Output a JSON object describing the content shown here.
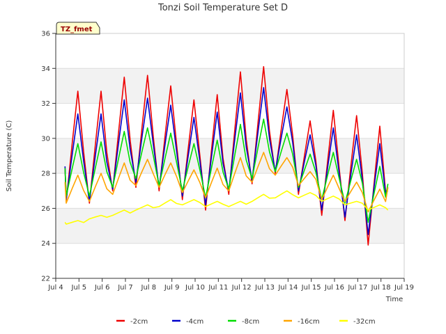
{
  "chart_data": {
    "type": "line",
    "title": "Tonzi Soil Temperature Set D",
    "xlabel": "Time",
    "ylabel": "Soil Temperature (C)",
    "badge": "TZ_fmet",
    "xlim": [
      4,
      19
    ],
    "ylim": [
      22,
      36
    ],
    "xticks": [
      4,
      5,
      6,
      7,
      8,
      9,
      10,
      11,
      12,
      13,
      14,
      15,
      16,
      17,
      18,
      19
    ],
    "xtick_labels": [
      "Jul 4",
      "Jul 5",
      "Jul 6",
      "Jul 7",
      "Jul 8",
      "Jul 9",
      "Jul 10",
      "Jul 11",
      "Jul 12",
      "Jul 13",
      "Jul 14",
      "Jul 15",
      "Jul 16",
      "Jul 17",
      "Jul 18",
      "Jul 19"
    ],
    "yticks": [
      22,
      24,
      26,
      28,
      30,
      32,
      34,
      36
    ],
    "grid": true,
    "legend_position": "bottom",
    "days": [
      4.5,
      5.5,
      6.5,
      7.5,
      8.5,
      9.5,
      10.5,
      11.5,
      12.5,
      13.5,
      14.5,
      15.5,
      16.5,
      17.5
    ],
    "x_end": 18.3,
    "series": [
      {
        "name": "-2cm",
        "color": "#ee0000",
        "start": 28.3,
        "end": 27.0,
        "max": [
          32.7,
          32.7,
          33.5,
          33.6,
          33.0,
          32.2,
          32.5,
          33.8,
          34.1,
          32.8,
          31.0,
          31.6,
          31.3,
          30.7
        ],
        "min": [
          26.4,
          26.3,
          27.0,
          27.2,
          27.0,
          26.5,
          25.9,
          26.8,
          27.4,
          28.0,
          26.8,
          25.6,
          25.3,
          23.9
        ]
      },
      {
        "name": "-4cm",
        "color": "#0000cc",
        "start": 28.4,
        "end": 27.2,
        "max": [
          31.4,
          31.4,
          32.2,
          32.3,
          31.9,
          31.2,
          31.5,
          32.6,
          32.9,
          31.8,
          30.2,
          30.6,
          30.2,
          29.7
        ],
        "min": [
          26.5,
          26.4,
          27.1,
          27.5,
          27.2,
          26.7,
          26.2,
          27.0,
          27.6,
          28.1,
          27.0,
          25.9,
          25.5,
          24.5
        ]
      },
      {
        "name": "-8cm",
        "color": "#00dd00",
        "start": 28.3,
        "end": 27.4,
        "max": [
          29.7,
          29.8,
          30.4,
          30.6,
          30.3,
          29.7,
          29.9,
          30.8,
          31.1,
          30.3,
          29.1,
          29.2,
          28.8,
          28.4
        ],
        "min": [
          26.7,
          26.7,
          27.2,
          27.7,
          27.3,
          27.0,
          26.6,
          27.1,
          27.7,
          28.1,
          27.2,
          26.5,
          26.3,
          25.2
        ]
      },
      {
        "name": "-16cm",
        "color": "#ffa500",
        "start": 27.5,
        "end": 27.2,
        "max": [
          27.9,
          28.0,
          28.6,
          28.8,
          28.6,
          28.2,
          28.3,
          28.9,
          29.2,
          28.9,
          28.1,
          27.9,
          27.5,
          27.1
        ],
        "min": [
          26.3,
          26.4,
          26.8,
          27.3,
          27.2,
          26.9,
          26.6,
          27.0,
          27.5,
          27.9,
          27.3,
          26.5,
          26.4,
          25.8
        ]
      },
      {
        "name": "-32cm",
        "color": "#ffff00",
        "start": 25.2,
        "end": 25.9,
        "max": [
          25.3,
          25.6,
          25.9,
          26.2,
          26.5,
          26.5,
          26.4,
          26.4,
          26.8,
          27.0,
          26.9,
          26.7,
          26.4,
          26.2
        ],
        "min": [
          25.1,
          25.4,
          25.6,
          25.9,
          26.1,
          26.2,
          26.1,
          26.1,
          26.4,
          26.6,
          26.6,
          26.4,
          26.2,
          25.9
        ]
      }
    ]
  }
}
